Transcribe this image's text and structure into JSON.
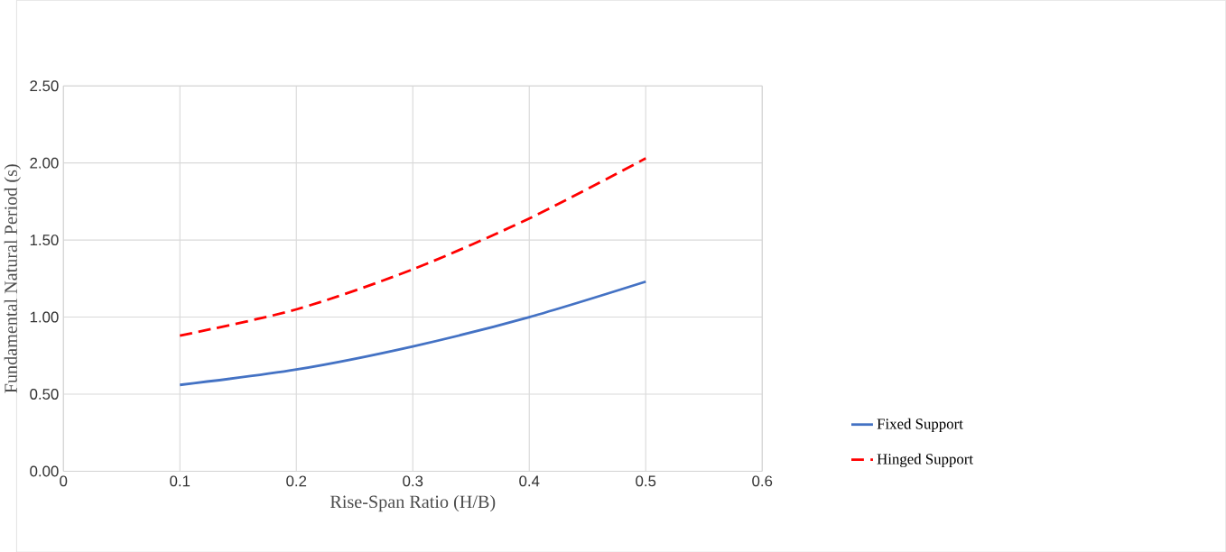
{
  "chart_data": {
    "type": "line",
    "xlabel": "Rise-Span Ratio (H/B)",
    "ylabel": "Fundamental Natural Period (s)",
    "x": [
      0.1,
      0.2,
      0.3,
      0.4,
      0.5
    ],
    "series": [
      {
        "name": "Fixed Support",
        "color": "#4472c4",
        "values": [
          0.56,
          0.66,
          0.81,
          1.0,
          1.23
        ],
        "line_style": "solid"
      },
      {
        "name": "Hinged Support",
        "color": "#ff0000",
        "values": [
          0.88,
          1.05,
          1.31,
          1.64,
          2.03
        ],
        "line_style": "dashed"
      }
    ],
    "xlim": [
      0,
      0.6
    ],
    "xticks": [
      0,
      0.1,
      0.2,
      0.3,
      0.4,
      0.5,
      0.6
    ],
    "ylim": [
      0,
      2.5
    ],
    "yticks": [
      {
        "value": 0,
        "label": "0.00"
      },
      {
        "value": 0.5,
        "label": "0.50"
      },
      {
        "value": 1,
        "label": "1.00"
      },
      {
        "value": 1.5,
        "label": "1.50"
      },
      {
        "value": 2,
        "label": "2.00"
      },
      {
        "value": 2.5,
        "label": "2.50"
      }
    ],
    "grid": true,
    "legend": "right",
    "marker": "none"
  }
}
